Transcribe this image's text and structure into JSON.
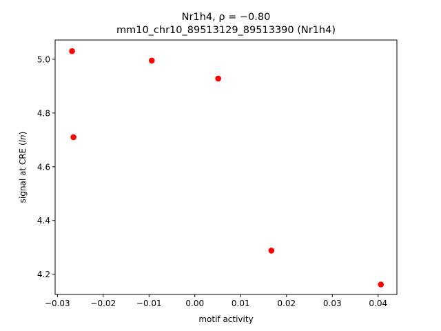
{
  "chart_data": {
    "type": "scatter",
    "title_line1": "Nr1h4, ρ = −0.80",
    "title_line2": "mm10_chr10_89513129_89513390 (Nr1h4)",
    "xlabel": "motif activity",
    "ylabel_prefix": "signal at CRE (",
    "ylabel_italic": "ln",
    "ylabel_suffix": ")",
    "xlim": [
      -0.0305,
      0.0441
    ],
    "ylim": [
      4.1248,
      5.0716
    ],
    "x_ticks": [
      -0.03,
      -0.02,
      -0.01,
      0.0,
      0.01,
      0.02,
      0.03,
      0.04
    ],
    "x_tick_labels": [
      "−0.03",
      "−0.02",
      "−0.01",
      "0.00",
      "0.01",
      "0.02",
      "0.03",
      "0.04"
    ],
    "y_ticks": [
      4.2,
      4.4,
      4.6,
      4.8,
      5.0
    ],
    "y_tick_labels": [
      "4.2",
      "4.4",
      "4.6",
      "4.8",
      "5.0"
    ],
    "grid": false,
    "marker_color": "#ff0000",
    "points": [
      {
        "x": -0.0268,
        "y": 5.03
      },
      {
        "x": -0.0265,
        "y": 4.71
      },
      {
        "x": -0.0094,
        "y": 4.995
      },
      {
        "x": 0.0051,
        "y": 4.928
      },
      {
        "x": 0.0167,
        "y": 4.288
      },
      {
        "x": 0.0406,
        "y": 4.162
      }
    ]
  }
}
